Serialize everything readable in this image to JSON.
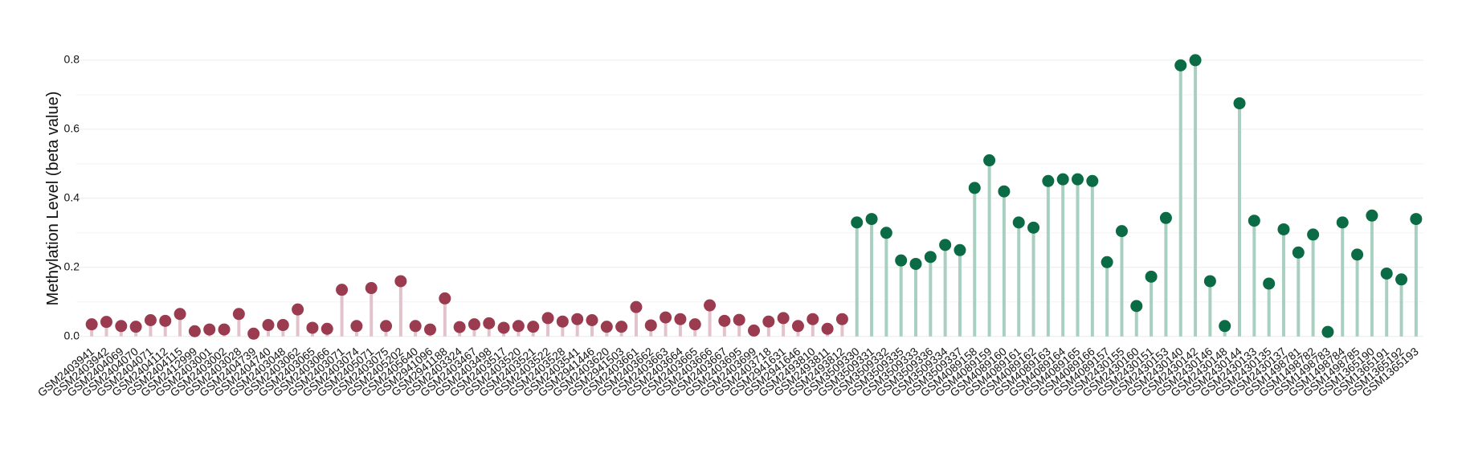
{
  "chart_data": {
    "type": "lollipop",
    "y_label": "Methylation Level (beta value)",
    "categories": [
      "GSM2403941",
      "GSM2403942",
      "GSM2404069",
      "GSM2404070",
      "GSM2404071",
      "GSM2404112",
      "GSM2404115",
      "GSM2412999",
      "GSM2403001",
      "GSM2403002",
      "GSM2403028",
      "GSM2404739",
      "GSM2404740",
      "GSM2403048",
      "GSM2403062",
      "GSM2403065",
      "GSM2403066",
      "GSM2403071",
      "GSM2403074",
      "GSM2405071",
      "GSM2403075",
      "GSM2405202",
      "GSM2405640",
      "GSM2941096",
      "GSM2941188",
      "GSM2403324",
      "GSM2403467",
      "GSM2403498",
      "GSM2403517",
      "GSM2403520",
      "GSM2403521",
      "GSM2403522",
      "GSM2403528",
      "GSM2403541",
      "GSM2941446",
      "GSM2403620",
      "GSM2941503",
      "GSM2403661",
      "GSM2403662",
      "GSM2403663",
      "GSM2403664",
      "GSM2403665",
      "GSM2403666",
      "GSM2403667",
      "GSM2403695",
      "GSM2403699",
      "GSM2403718",
      "GSM2941631",
      "GSM2941646",
      "GSM2493810",
      "GSM2493811",
      "GSM2493812",
      "GSM3509330",
      "GSM3509331",
      "GSM3509332",
      "GSM3509335",
      "GSM3509333",
      "GSM3509336",
      "GSM3509334",
      "GSM3509337",
      "GSM4089158",
      "GSM4089159",
      "GSM4089160",
      "GSM4089161",
      "GSM4089162",
      "GSM4089163",
      "GSM4089164",
      "GSM4089165",
      "GSM4089166",
      "GSM4089157",
      "GSM2430155",
      "GSM2430160",
      "GSM2430151",
      "GSM2430153",
      "GSM2430140",
      "GSM2430142",
      "GSM2430146",
      "GSM2430148",
      "GSM2430144",
      "GSM2430133",
      "GSM2430135",
      "GSM2430137",
      "GSM1498781",
      "GSM1498782",
      "GSM1498783",
      "GSM1498784",
      "GSM1498785",
      "GSM1365190",
      "GSM1365191",
      "GSM1365192",
      "GSM1365193"
    ],
    "series": [
      {
        "color": "#9b3b50",
        "stem_color": "#e3c3cb",
        "values": [
          0.035,
          0.042,
          0.03,
          0.028,
          0.047,
          0.045,
          0.065,
          0.015,
          0.02,
          0.02,
          0.065,
          0.008,
          0.033,
          0.033,
          0.078,
          0.025,
          0.022,
          0.135,
          0.03,
          0.14,
          0.03,
          0.16,
          0.03,
          0.02,
          0.11,
          0.027,
          0.035,
          0.038,
          0.025,
          0.03,
          0.028,
          0.053,
          0.043,
          0.05,
          0.047,
          0.028,
          0.028,
          0.085,
          0.032,
          0.055,
          0.05,
          0.035,
          0.09,
          0.045,
          0.048,
          0.017,
          0.043,
          0.053,
          0.03,
          0.05,
          0.022,
          0.05,
          null,
          null,
          null,
          null,
          null,
          null,
          null,
          null,
          null,
          null,
          null,
          null,
          null,
          null,
          null,
          null,
          null,
          null,
          null,
          null,
          null,
          null,
          null,
          null,
          null,
          null,
          null,
          null,
          null,
          null,
          null,
          null,
          null,
          null,
          null,
          null,
          null,
          null,
          null
        ]
      },
      {
        "color": "#0b6b45",
        "stem_color": "#a9cfc1",
        "values": [
          null,
          null,
          null,
          null,
          null,
          null,
          null,
          null,
          null,
          null,
          null,
          null,
          null,
          null,
          null,
          null,
          null,
          null,
          null,
          null,
          null,
          null,
          null,
          null,
          null,
          null,
          null,
          null,
          null,
          null,
          null,
          null,
          null,
          null,
          null,
          null,
          null,
          null,
          null,
          null,
          null,
          null,
          null,
          null,
          null,
          null,
          null,
          null,
          null,
          null,
          null,
          null,
          0.33,
          0.34,
          0.3,
          0.22,
          0.21,
          0.23,
          0.265,
          0.25,
          0.43,
          0.51,
          0.42,
          0.33,
          0.315,
          0.45,
          0.455,
          0.455,
          0.45,
          0.215,
          0.305,
          0.088,
          0.173,
          0.343,
          0.785,
          0.8,
          0.16,
          0.03,
          0.675,
          0.335,
          0.153,
          0.31,
          0.243,
          0.295,
          0.013,
          0.33,
          0.237,
          0.35,
          0.182,
          0.165,
          0.34
        ]
      }
    ],
    "ylim": [
      -0.01,
      0.83
    ],
    "yticks": [
      {
        "value": 0,
        "label": "0.0"
      },
      0.2,
      0.4,
      0.6,
      0.8
    ],
    "grid": true
  }
}
